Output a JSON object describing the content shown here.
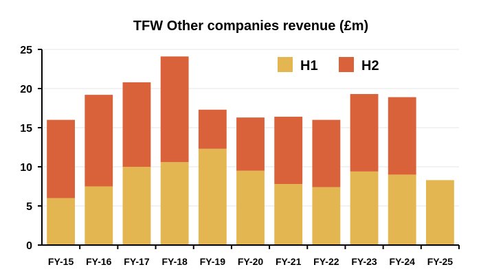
{
  "colors": {
    "h1": "#E3B651",
    "h2": "#DA623A",
    "axis": "#000000",
    "grid": "#E6E6E6"
  },
  "chart_data": {
    "type": "bar",
    "stacked": true,
    "title": "TFW Other companies revenue (£m)",
    "xlabel": "",
    "ylabel": "",
    "categories": [
      "FY-15",
      "FY-16",
      "FY-17",
      "FY-18",
      "FY-19",
      "FY-20",
      "FY-21",
      "FY-22",
      "FY-23",
      "FY-24",
      "FY-25"
    ],
    "series": [
      {
        "name": "H1",
        "color": "#E3B651",
        "values": [
          6.0,
          7.5,
          10.0,
          10.6,
          12.3,
          9.5,
          7.8,
          7.4,
          9.4,
          9.0,
          8.3
        ]
      },
      {
        "name": "H2",
        "color": "#DA623A",
        "values": [
          10.0,
          11.7,
          10.8,
          13.5,
          5.0,
          6.8,
          8.6,
          8.6,
          9.9,
          9.9,
          null
        ]
      }
    ],
    "ylim": [
      0,
      25
    ],
    "yticks": [
      0,
      5,
      10,
      15,
      20,
      25
    ],
    "grid": true,
    "legend": "top-right"
  }
}
